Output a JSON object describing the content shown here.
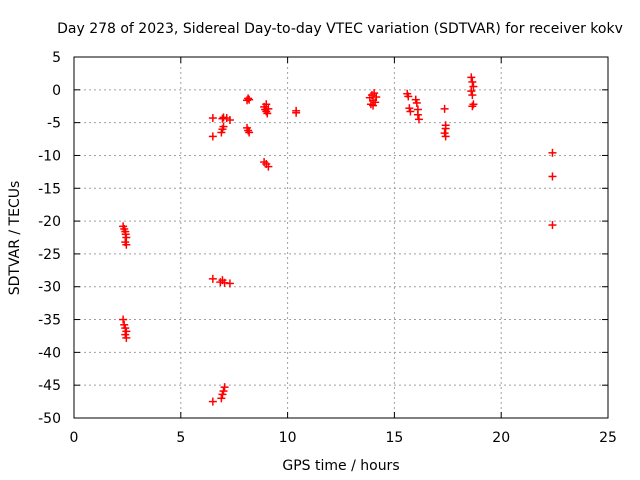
{
  "chart_data": {
    "type": "scatter",
    "title": "Day 278 of 2023, Sidereal Day-to-day VTEC variation (SDTVAR) for receiver kokv",
    "xlabel": "GPS time / hours",
    "ylabel": "SDTVAR / TECUs",
    "xlim": [
      0,
      25
    ],
    "ylim": [
      -50,
      5
    ],
    "xticks": [
      "0",
      "5",
      "10",
      "15",
      "20",
      "25"
    ],
    "yticks": [
      "5",
      "0",
      "-5",
      "-10",
      "-15",
      "-20",
      "-25",
      "-30",
      "-35",
      "-40",
      "-45",
      "-50"
    ],
    "grid": true,
    "marker": "+",
    "color": "#ff0000",
    "series": [
      {
        "name": "SDTVAR",
        "points": [
          [
            2.3,
            -20.8
          ],
          [
            2.35,
            -21.2
          ],
          [
            2.4,
            -21.6
          ],
          [
            2.42,
            -22.0
          ],
          [
            2.45,
            -22.5
          ],
          [
            2.4,
            -23.2
          ],
          [
            2.45,
            -23.6
          ],
          [
            2.3,
            -35.0
          ],
          [
            2.35,
            -35.8
          ],
          [
            2.4,
            -36.3
          ],
          [
            2.45,
            -36.8
          ],
          [
            2.4,
            -37.3
          ],
          [
            2.45,
            -37.8
          ],
          [
            6.5,
            -4.3
          ],
          [
            6.5,
            -7.1
          ],
          [
            6.5,
            -28.8
          ],
          [
            6.5,
            -47.5
          ],
          [
            6.85,
            -29.3
          ],
          [
            6.95,
            -29.0
          ],
          [
            7.05,
            -29.4
          ],
          [
            7.3,
            -29.5
          ],
          [
            6.9,
            -47.0
          ],
          [
            6.95,
            -46.4
          ],
          [
            7.0,
            -45.9
          ],
          [
            7.05,
            -45.3
          ],
          [
            6.9,
            -6.5
          ],
          [
            6.95,
            -6.0
          ],
          [
            7.0,
            -5.6
          ],
          [
            6.95,
            -4.4
          ],
          [
            7.0,
            -4.2
          ],
          [
            7.15,
            -4.3
          ],
          [
            7.3,
            -4.6
          ],
          [
            8.1,
            -1.6
          ],
          [
            8.15,
            -1.3
          ],
          [
            8.2,
            -1.5
          ],
          [
            8.1,
            -5.8
          ],
          [
            8.15,
            -6.2
          ],
          [
            8.2,
            -6.5
          ],
          [
            8.9,
            -11.0
          ],
          [
            9.0,
            -11.3
          ],
          [
            9.1,
            -11.7
          ],
          [
            8.9,
            -2.6
          ],
          [
            8.95,
            -3.0
          ],
          [
            9.0,
            -3.3
          ],
          [
            9.05,
            -3.6
          ],
          [
            9.1,
            -2.9
          ],
          [
            9.0,
            -2.2
          ],
          [
            10.4,
            -3.2
          ],
          [
            10.4,
            -3.5
          ],
          [
            13.85,
            -1.2
          ],
          [
            13.9,
            -2.2
          ],
          [
            13.95,
            -0.8
          ],
          [
            14.0,
            -1.6
          ],
          [
            14.05,
            -0.5
          ],
          [
            14.1,
            -1.9
          ],
          [
            14.15,
            -1.1
          ],
          [
            14.0,
            -2.4
          ],
          [
            15.6,
            -0.6
          ],
          [
            15.65,
            -1.0
          ],
          [
            15.7,
            -2.8
          ],
          [
            15.75,
            -3.3
          ],
          [
            16.0,
            -1.5
          ],
          [
            16.05,
            -2.0
          ],
          [
            16.1,
            -3.0
          ],
          [
            16.1,
            -3.8
          ],
          [
            16.15,
            -4.5
          ],
          [
            17.35,
            -2.9
          ],
          [
            17.4,
            -5.4
          ],
          [
            17.4,
            -5.9
          ],
          [
            17.35,
            -6.6
          ],
          [
            17.4,
            -7.1
          ],
          [
            18.6,
            1.9
          ],
          [
            18.65,
            1.2
          ],
          [
            18.7,
            0.5
          ],
          [
            18.6,
            -0.2
          ],
          [
            18.65,
            -0.8
          ],
          [
            18.7,
            -2.2
          ],
          [
            18.65,
            -2.5
          ],
          [
            22.4,
            -9.6
          ],
          [
            22.4,
            -13.2
          ],
          [
            22.4,
            -20.6
          ]
        ]
      }
    ]
  }
}
